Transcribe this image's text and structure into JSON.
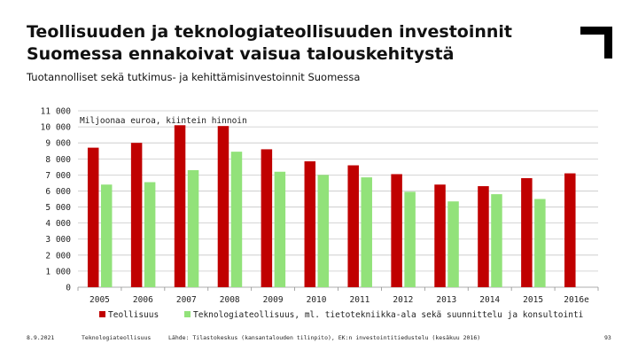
{
  "slide": {
    "title_line1": "Teollisuuden ja teknologiateollisuuden investoinnit",
    "title_line2": "Suomessa ennakoivat vaisua talouskehitystä",
    "subtitle": "Tuotannolliset sekä tutkimus- ja kehittämisinvestoinnit Suomessa",
    "footer_date": "8.9.2021",
    "footer_org": "Teknologiateollisuus",
    "footer_source": "Lähde: Tilastokeskus (kansantalouden tilinpito), EK:n investointitiedustelu (kesäkuu 2016)",
    "page_number": "93"
  },
  "colors": {
    "teollisuus": "#c00000",
    "teknologiateollisuus": "#92e27a",
    "grid": "#c8c8c8",
    "axis": "#909090"
  },
  "chart_data": {
    "type": "bar",
    "title": "Miljoonaa euroa, kiintein hinnoin",
    "categories": [
      "2005",
      "2006",
      "2007",
      "2008",
      "2009",
      "2010",
      "2011",
      "2012",
      "2013",
      "2014",
      "2015",
      "2016e"
    ],
    "series": [
      {
        "name": "Teollisuus",
        "values": [
          8700,
          9000,
          10100,
          10050,
          8600,
          7850,
          7600,
          7050,
          6400,
          6300,
          6800,
          7100
        ]
      },
      {
        "name": "Teknologiateollisuus, ml. tietotekniikka-ala sekä suunnittelu ja konsultointi",
        "values": [
          6400,
          6550,
          7300,
          8450,
          7200,
          7000,
          6850,
          5950,
          5350,
          5800,
          5500,
          null
        ]
      }
    ],
    "ylim": [
      0,
      11000
    ],
    "yticks": [
      0,
      1000,
      2000,
      3000,
      4000,
      5000,
      6000,
      7000,
      8000,
      9000,
      10000,
      11000
    ],
    "ytick_labels": [
      "0",
      "1 000",
      "2 000",
      "3 000",
      "4 000",
      "5 000",
      "6 000",
      "7 000",
      "8 000",
      "9 000",
      "10 000",
      "11 000"
    ],
    "grid": true,
    "legend_position": "bottom"
  }
}
